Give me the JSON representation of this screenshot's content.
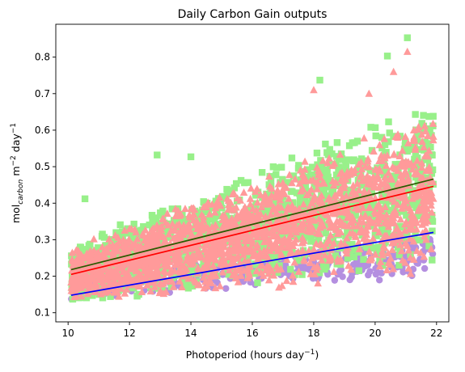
{
  "chart_data": {
    "type": "scatter",
    "title": "Daily Carbon Gain outputs",
    "xlabel_main": "Photoperiod (hours day",
    "xlabel_sup": "−1",
    "xlabel_end": ")",
    "ylabel_main": "mol",
    "ylabel_sub": "carbon",
    "ylabel_mid": " m",
    "ylabel_sup1": "−2",
    "ylabel_mid2": " day",
    "ylabel_sup2": "−1",
    "xlim": [
      9.6,
      22.4
    ],
    "ylim": [
      0.075,
      0.89
    ],
    "x_ticks": [
      10,
      12,
      14,
      16,
      18,
      20,
      22
    ],
    "x_tick_labels": [
      "10",
      "12",
      "14",
      "16",
      "18",
      "20",
      "22"
    ],
    "y_ticks": [
      0.1,
      0.2,
      0.3,
      0.4,
      0.5,
      0.6,
      0.7,
      0.8
    ],
    "y_tick_labels": [
      "0.1",
      "0.2",
      "0.3",
      "0.4",
      "0.5",
      "0.6",
      "0.7",
      "0.8"
    ],
    "grid": false,
    "series": [
      {
        "marker": "circle",
        "color": "#b48fe0",
        "x_range": [
          10.1,
          21.9
        ],
        "band_low": [
          0.135,
          0.195
        ],
        "band_high": [
          0.205,
          0.32
        ],
        "fit": {
          "x": [
            10.1,
            21.9
          ],
          "y": [
            0.148,
            0.32
          ],
          "color": "#0000ff"
        }
      },
      {
        "marker": "square",
        "color": "#98f08a",
        "x_range": [
          10.1,
          21.9
        ],
        "band_low": [
          0.12,
          0.22
        ],
        "band_high": [
          0.29,
          0.7
        ],
        "outliers": [
          [
            21.05,
            0.853
          ],
          [
            20.4,
            0.803
          ],
          [
            18.2,
            0.737
          ],
          [
            10.55,
            0.412
          ],
          [
            12.9,
            0.532
          ],
          [
            14.0,
            0.527
          ]
        ],
        "fit": {
          "x": [
            10.1,
            21.9
          ],
          "y": [
            0.218,
            0.466
          ],
          "color": "#2a5a00"
        }
      },
      {
        "marker": "triangle",
        "color": "#ff9a9a",
        "x_range": [
          10.1,
          21.9
        ],
        "band_low": [
          0.12,
          0.2
        ],
        "band_high": [
          0.28,
          0.66
        ],
        "outliers": [
          [
            21.05,
            0.815
          ],
          [
            20.6,
            0.76
          ],
          [
            19.8,
            0.7
          ],
          [
            18.0,
            0.71
          ]
        ],
        "fit": {
          "x": [
            10.1,
            21.9
          ],
          "y": [
            0.205,
            0.446
          ],
          "color": "#ff0000"
        }
      }
    ]
  }
}
